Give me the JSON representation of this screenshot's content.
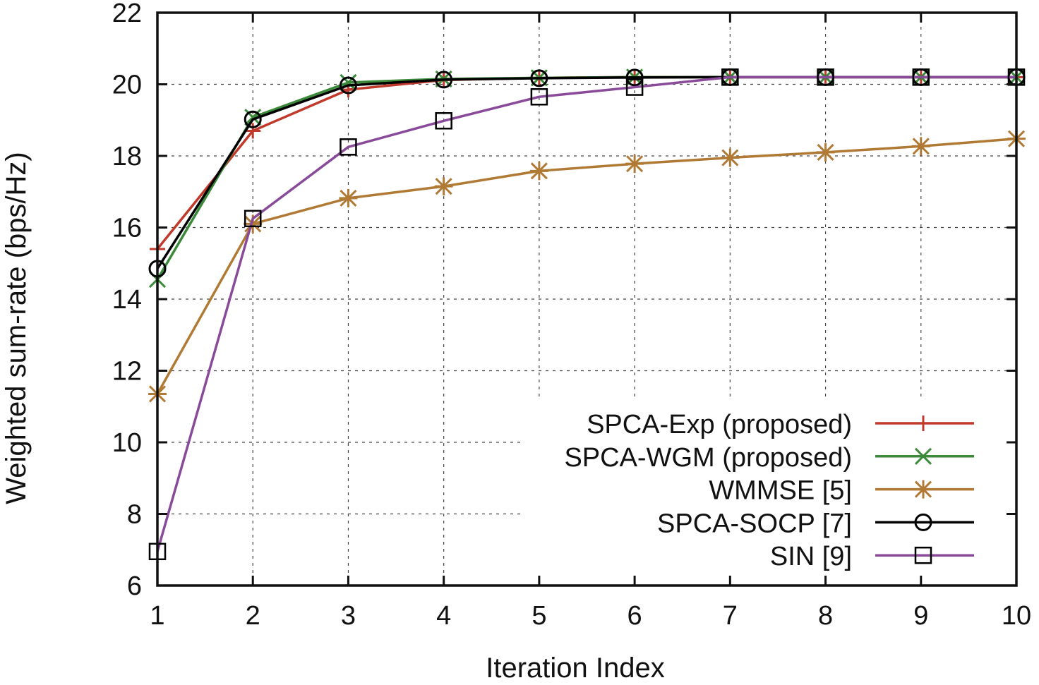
{
  "chart_data": {
    "type": "line",
    "title": "",
    "xlabel": "Iteration Index",
    "ylabel": "Weighted sum-rate (bps/Hz)",
    "xlim": [
      1,
      10
    ],
    "ylim": [
      6,
      22
    ],
    "xticks": [
      "1",
      "2",
      "3",
      "4",
      "5",
      "6",
      "7",
      "8",
      "9",
      "10"
    ],
    "yticks": [
      "6",
      "8",
      "10",
      "12",
      "14",
      "16",
      "18",
      "20",
      "22"
    ],
    "grid": true,
    "legend_position": "bottom-right",
    "x": [
      1,
      2,
      3,
      4,
      5,
      6,
      7,
      8,
      9,
      10
    ],
    "series": [
      {
        "name": "SPCA-Exp (proposed)",
        "color": "#c0392b",
        "marker": "plus",
        "values": [
          15.4,
          18.7,
          19.85,
          20.12,
          20.18,
          20.2,
          20.2,
          20.2,
          20.2,
          20.2
        ]
      },
      {
        "name": "SPCA-WGM (proposed)",
        "color": "#3a8a3a",
        "marker": "cross",
        "values": [
          14.55,
          19.08,
          20.05,
          20.15,
          20.18,
          20.2,
          20.2,
          20.2,
          20.2,
          20.2
        ]
      },
      {
        "name": "WMMSE [5]",
        "color": "#b07a35",
        "marker": "star",
        "values": [
          11.35,
          16.1,
          16.82,
          17.15,
          17.58,
          17.78,
          17.95,
          18.1,
          18.27,
          18.48
        ]
      },
      {
        "name": "SPCA-SOCP [7]",
        "color": "#000000",
        "marker": "circle",
        "values": [
          14.85,
          19.02,
          19.97,
          20.13,
          20.17,
          20.19,
          20.2,
          20.2,
          20.2,
          20.2
        ]
      },
      {
        "name": "SIN [9]",
        "color": "#8a4a9a",
        "marker": "square",
        "values": [
          6.95,
          16.25,
          18.25,
          18.98,
          19.65,
          19.92,
          20.2,
          20.2,
          20.2,
          20.2
        ]
      }
    ]
  }
}
